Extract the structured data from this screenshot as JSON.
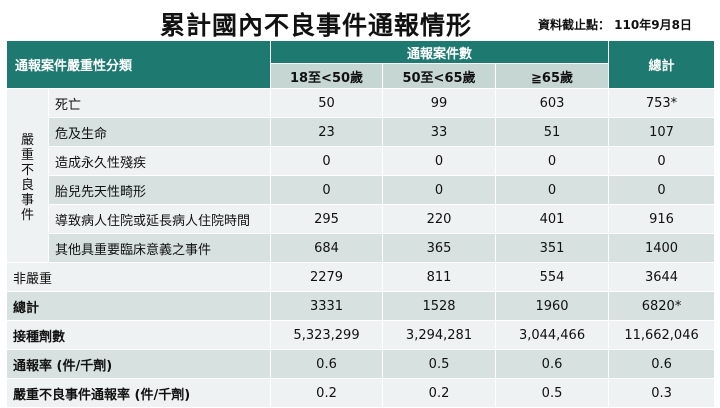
{
  "title": "累計國內不良事件通報情形",
  "data_date": "資料截止點： 110年9月8日",
  "header": {
    "category": "通報案件嚴重性分類",
    "group": "通報案件數",
    "total": "總計",
    "age_groups": [
      "18至<50歲",
      "50至<65歲",
      "≧65歲"
    ]
  },
  "serious_label": "嚴重不良事件",
  "rows": [
    {
      "label": "死亡",
      "values": [
        "50",
        "99",
        "603",
        "753*"
      ]
    },
    {
      "label": "危及生命",
      "values": [
        "23",
        "33",
        "51",
        "107"
      ]
    },
    {
      "label": "造成永久性殘疾",
      "values": [
        "0",
        "0",
        "0",
        "0"
      ]
    },
    {
      "label": "胎兒先天性畸形",
      "values": [
        "0",
        "0",
        "0",
        "0"
      ]
    },
    {
      "label": "導致病人住院或延長病人住院時間",
      "values": [
        "295",
        "220",
        "401",
        "916"
      ]
    },
    {
      "label": "其他具重要臨床意義之事件",
      "values": [
        "684",
        "365",
        "351",
        "1400"
      ]
    }
  ],
  "non_serious": {
    "label": "非嚴重",
    "values": [
      "2279",
      "811",
      "554",
      "3644"
    ]
  },
  "summary": [
    {
      "label": "總計",
      "values": [
        "3331",
        "1528",
        "1960",
        "6820*"
      ]
    },
    {
      "label": "接種劑數",
      "values": [
        "5,323,299",
        "3,294,281",
        "3,044,466",
        "11,662,046"
      ]
    },
    {
      "label": "通報率 (件/千劑)",
      "values": [
        "0.6",
        "0.5",
        "0.6",
        "0.6"
      ]
    },
    {
      "label": "嚴重不良事件通報率 (件/千劑)",
      "values": [
        "0.2",
        "0.2",
        "0.5",
        "0.3"
      ]
    }
  ]
}
